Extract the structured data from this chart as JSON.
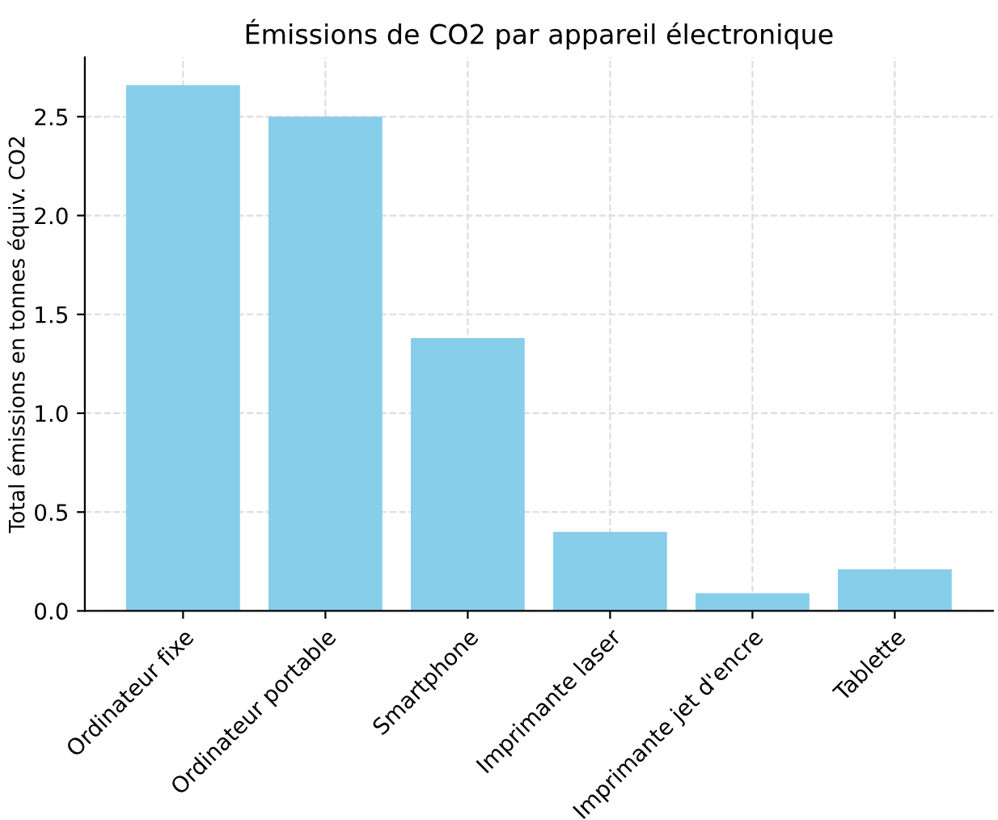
{
  "chart_data": {
    "type": "bar",
    "title": "Émissions de CO2 par appareil électronique",
    "ylabel": "Total émissions en tonnes équiv. CO2",
    "categories": [
      "Ordinateur fixe",
      "Ordinateur portable",
      "Smartphone",
      "Imprimante laser",
      "Imprimante jet d'encre",
      "Tablette"
    ],
    "values": [
      2.66,
      2.5,
      1.38,
      0.4,
      0.09,
      0.21
    ],
    "color": "#87ceeb",
    "ylim": [
      0,
      2.8
    ],
    "yticks": [
      {
        "value": 0,
        "label": "0.0"
      },
      0.5,
      {
        "value": 1,
        "label": "1.0"
      },
      1.5,
      {
        "value": 2,
        "label": "2.0"
      },
      2.5
    ],
    "grid": true
  }
}
